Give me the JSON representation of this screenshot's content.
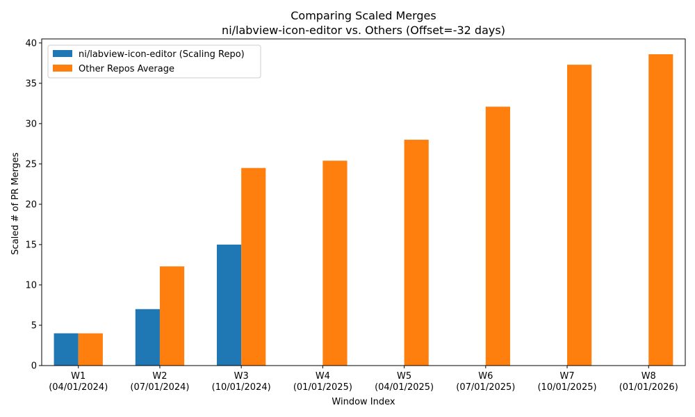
{
  "chart_data": {
    "type": "bar",
    "title": "Comparing Scaled Merges",
    "subtitle": "ni/labview-icon-editor vs. Others (Offset=-32 days)",
    "xlabel": "Window Index",
    "ylabel": "Scaled # of PR Merges",
    "ylim": [
      0,
      40.5
    ],
    "yticks": [
      0,
      5,
      10,
      15,
      20,
      25,
      30,
      35,
      40
    ],
    "categories": [
      [
        "W1",
        "(04/01/2024)"
      ],
      [
        "W2",
        "(07/01/2024)"
      ],
      [
        "W3",
        "(10/01/2024)"
      ],
      [
        "W4",
        "(01/01/2025)"
      ],
      [
        "W5",
        "(04/01/2025)"
      ],
      [
        "W6",
        "(07/01/2025)"
      ],
      [
        "W7",
        "(10/01/2025)"
      ],
      [
        "W8",
        "(01/01/2026)"
      ]
    ],
    "series": [
      {
        "name": "ni/labview-icon-editor (Scaling Repo)",
        "color": "#1f77b4",
        "values": [
          4,
          7,
          15,
          null,
          null,
          null,
          null,
          null
        ]
      },
      {
        "name": "Other Repos Average",
        "color": "#ff7f0e",
        "values": [
          4,
          12.3,
          24.5,
          25.4,
          28.0,
          32.1,
          37.3,
          38.6
        ]
      }
    ],
    "legend": "top-left",
    "grid": false
  }
}
